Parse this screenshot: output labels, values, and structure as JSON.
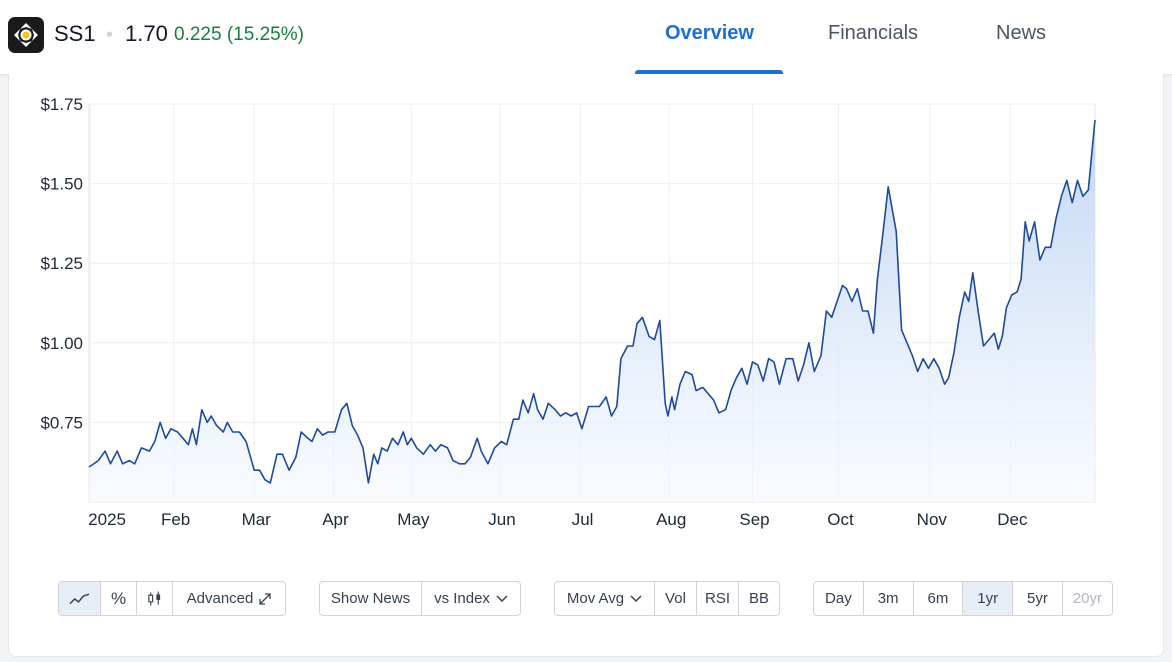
{
  "header": {
    "ticker": "SS1",
    "separator": "•",
    "price": "1.70",
    "change": "0.225 (15.25%)",
    "tabs": [
      {
        "label": "Overview",
        "active": true
      },
      {
        "label": "Financials",
        "active": false
      },
      {
        "label": "News",
        "active": false
      }
    ]
  },
  "colors": {
    "accent": "#1d6fd6",
    "positive": "#15803d",
    "line": "#1f4a9c",
    "area_top": "#bcd3f3",
    "area_bottom": "#f4f8fe"
  },
  "chart_data": {
    "type": "area",
    "title": "",
    "xlabel": "",
    "ylabel": "",
    "ylim": [
      0.5,
      1.75
    ],
    "yticks": [
      0.75,
      1.0,
      1.25,
      1.5,
      1.75
    ],
    "ytick_labels": [
      "$0.75",
      "$1.00",
      "$1.25",
      "$1.50",
      "$1.75"
    ],
    "xticks": [
      {
        "label": "2025",
        "t": 0.04
      },
      {
        "label": "Feb",
        "t": 3.15
      },
      {
        "label": "Mar",
        "t": 6.15
      },
      {
        "label": "Apr",
        "t": 9.1
      },
      {
        "label": "May",
        "t": 12.0
      },
      {
        "label": "Jun",
        "t": 15.3
      },
      {
        "label": "Jul",
        "t": 18.3
      },
      {
        "label": "Aug",
        "t": 21.6
      },
      {
        "label": "Sep",
        "t": 24.7
      },
      {
        "label": "Oct",
        "t": 27.9
      },
      {
        "label": "Nov",
        "t": 31.3
      },
      {
        "label": "Dec",
        "t": 34.3
      }
    ],
    "x_unit": "time (months index, 0 = start of 2025 view)",
    "grid": true,
    "series": [
      {
        "values": [
          [
            0.0,
            0.61
          ],
          [
            0.35,
            0.63
          ],
          [
            0.6,
            0.66
          ],
          [
            0.8,
            0.62
          ],
          [
            1.05,
            0.66
          ],
          [
            1.25,
            0.62
          ],
          [
            1.5,
            0.63
          ],
          [
            1.7,
            0.62
          ],
          [
            1.95,
            0.67
          ],
          [
            2.25,
            0.66
          ],
          [
            2.45,
            0.69
          ],
          [
            2.65,
            0.75
          ],
          [
            2.85,
            0.7
          ],
          [
            3.05,
            0.73
          ],
          [
            3.3,
            0.72
          ],
          [
            3.5,
            0.7
          ],
          [
            3.7,
            0.68
          ],
          [
            3.85,
            0.73
          ],
          [
            4.0,
            0.68
          ],
          [
            4.2,
            0.79
          ],
          [
            4.4,
            0.75
          ],
          [
            4.55,
            0.77
          ],
          [
            4.75,
            0.74
          ],
          [
            5.0,
            0.72
          ],
          [
            5.15,
            0.75
          ],
          [
            5.35,
            0.72
          ],
          [
            5.6,
            0.72
          ],
          [
            5.85,
            0.69
          ],
          [
            6.15,
            0.6
          ],
          [
            6.35,
            0.6
          ],
          [
            6.55,
            0.57
          ],
          [
            6.75,
            0.56
          ],
          [
            7.0,
            0.65
          ],
          [
            7.2,
            0.65
          ],
          [
            7.45,
            0.6
          ],
          [
            7.7,
            0.64
          ],
          [
            7.9,
            0.72
          ],
          [
            8.15,
            0.7
          ],
          [
            8.3,
            0.69
          ],
          [
            8.5,
            0.73
          ],
          [
            8.7,
            0.71
          ],
          [
            8.9,
            0.72
          ],
          [
            9.15,
            0.72
          ],
          [
            9.4,
            0.79
          ],
          [
            9.6,
            0.81
          ],
          [
            9.8,
            0.74
          ],
          [
            10.0,
            0.71
          ],
          [
            10.2,
            0.67
          ],
          [
            10.4,
            0.56
          ],
          [
            10.6,
            0.65
          ],
          [
            10.75,
            0.62
          ],
          [
            10.9,
            0.67
          ],
          [
            11.1,
            0.66
          ],
          [
            11.3,
            0.7
          ],
          [
            11.5,
            0.68
          ],
          [
            11.7,
            0.72
          ],
          [
            11.85,
            0.68
          ],
          [
            12.0,
            0.7
          ],
          [
            12.2,
            0.67
          ],
          [
            12.45,
            0.65
          ],
          [
            12.7,
            0.68
          ],
          [
            12.9,
            0.66
          ],
          [
            13.1,
            0.68
          ],
          [
            13.35,
            0.67
          ],
          [
            13.55,
            0.63
          ],
          [
            13.8,
            0.62
          ],
          [
            14.0,
            0.62
          ],
          [
            14.2,
            0.64
          ],
          [
            14.45,
            0.7
          ],
          [
            14.6,
            0.66
          ],
          [
            14.85,
            0.62
          ],
          [
            15.1,
            0.67
          ],
          [
            15.35,
            0.69
          ],
          [
            15.55,
            0.68
          ],
          [
            15.8,
            0.76
          ],
          [
            16.0,
            0.76
          ],
          [
            16.15,
            0.82
          ],
          [
            16.35,
            0.78
          ],
          [
            16.55,
            0.84
          ],
          [
            16.7,
            0.79
          ],
          [
            16.9,
            0.76
          ],
          [
            17.1,
            0.81
          ],
          [
            17.35,
            0.79
          ],
          [
            17.55,
            0.77
          ],
          [
            17.75,
            0.78
          ],
          [
            17.95,
            0.77
          ],
          [
            18.15,
            0.78
          ],
          [
            18.35,
            0.73
          ],
          [
            18.6,
            0.8
          ],
          [
            18.8,
            0.8
          ],
          [
            19.0,
            0.8
          ],
          [
            19.25,
            0.83
          ],
          [
            19.45,
            0.77
          ],
          [
            19.65,
            0.8
          ],
          [
            19.8,
            0.95
          ],
          [
            20.05,
            0.99
          ],
          [
            20.25,
            0.99
          ],
          [
            20.4,
            1.06
          ],
          [
            20.6,
            1.08
          ],
          [
            20.85,
            1.02
          ],
          [
            21.05,
            1.01
          ],
          [
            21.25,
            1.07
          ],
          [
            21.45,
            0.81
          ],
          [
            21.55,
            0.77
          ],
          [
            21.7,
            0.83
          ],
          [
            21.8,
            0.79
          ],
          [
            22.0,
            0.87
          ],
          [
            22.2,
            0.91
          ],
          [
            22.45,
            0.9
          ],
          [
            22.6,
            0.85
          ],
          [
            22.85,
            0.86
          ],
          [
            23.05,
            0.84
          ],
          [
            23.25,
            0.82
          ],
          [
            23.45,
            0.78
          ],
          [
            23.7,
            0.79
          ],
          [
            23.9,
            0.85
          ],
          [
            24.1,
            0.89
          ],
          [
            24.3,
            0.92
          ],
          [
            24.5,
            0.87
          ],
          [
            24.7,
            0.94
          ],
          [
            24.9,
            0.93
          ],
          [
            25.1,
            0.88
          ],
          [
            25.3,
            0.95
          ],
          [
            25.5,
            0.94
          ],
          [
            25.7,
            0.87
          ],
          [
            25.95,
            0.95
          ],
          [
            26.2,
            0.95
          ],
          [
            26.4,
            0.88
          ],
          [
            26.6,
            0.93
          ],
          [
            26.8,
            1.0
          ],
          [
            27.0,
            0.91
          ],
          [
            27.25,
            0.96
          ],
          [
            27.45,
            1.1
          ],
          [
            27.65,
            1.08
          ],
          [
            27.85,
            1.13
          ],
          [
            28.05,
            1.18
          ],
          [
            28.2,
            1.17
          ],
          [
            28.4,
            1.13
          ],
          [
            28.6,
            1.17
          ],
          [
            28.8,
            1.1
          ],
          [
            29.0,
            1.1
          ],
          [
            29.2,
            1.03
          ],
          [
            29.35,
            1.2
          ],
          [
            29.55,
            1.34
          ],
          [
            29.75,
            1.49
          ],
          [
            29.9,
            1.42
          ],
          [
            30.05,
            1.35
          ],
          [
            30.25,
            1.04
          ],
          [
            30.45,
            1.0
          ],
          [
            30.65,
            0.96
          ],
          [
            30.85,
            0.91
          ],
          [
            31.05,
            0.95
          ],
          [
            31.25,
            0.92
          ],
          [
            31.45,
            0.95
          ],
          [
            31.65,
            0.92
          ],
          [
            31.85,
            0.87
          ],
          [
            32.0,
            0.89
          ],
          [
            32.2,
            0.97
          ],
          [
            32.4,
            1.08
          ],
          [
            32.6,
            1.16
          ],
          [
            32.75,
            1.13
          ],
          [
            32.9,
            1.22
          ],
          [
            33.1,
            1.1
          ],
          [
            33.3,
            0.99
          ],
          [
            33.5,
            1.01
          ],
          [
            33.7,
            1.03
          ],
          [
            33.85,
            0.98
          ],
          [
            34.0,
            1.02
          ],
          [
            34.15,
            1.11
          ],
          [
            34.35,
            1.15
          ],
          [
            34.55,
            1.16
          ],
          [
            34.7,
            1.2
          ],
          [
            34.85,
            1.38
          ],
          [
            35.0,
            1.32
          ],
          [
            35.2,
            1.38
          ],
          [
            35.4,
            1.26
          ],
          [
            35.6,
            1.3
          ],
          [
            35.8,
            1.3
          ],
          [
            36.0,
            1.39
          ],
          [
            36.2,
            1.46
          ],
          [
            36.4,
            1.51
          ],
          [
            36.6,
            1.44
          ],
          [
            36.8,
            1.51
          ],
          [
            37.0,
            1.46
          ],
          [
            37.2,
            1.48
          ],
          [
            37.45,
            1.7
          ]
        ]
      }
    ]
  },
  "controls": {
    "chart_type": {
      "pct_label": "%",
      "advanced_label": "Advanced"
    },
    "news": {
      "show_news_label": "Show News",
      "vs_index_label": "vs Index"
    },
    "indicators": {
      "mov_avg_label": "Mov Avg",
      "vol_label": "Vol",
      "rsi_label": "RSI",
      "bb_label": "BB"
    },
    "ranges": [
      {
        "label": "Day",
        "selected": false,
        "disabled": false
      },
      {
        "label": "3m",
        "selected": false,
        "disabled": false
      },
      {
        "label": "6m",
        "selected": false,
        "disabled": false
      },
      {
        "label": "1yr",
        "selected": true,
        "disabled": false
      },
      {
        "label": "5yr",
        "selected": false,
        "disabled": false
      },
      {
        "label": "20yr",
        "selected": false,
        "disabled": true
      }
    ]
  }
}
